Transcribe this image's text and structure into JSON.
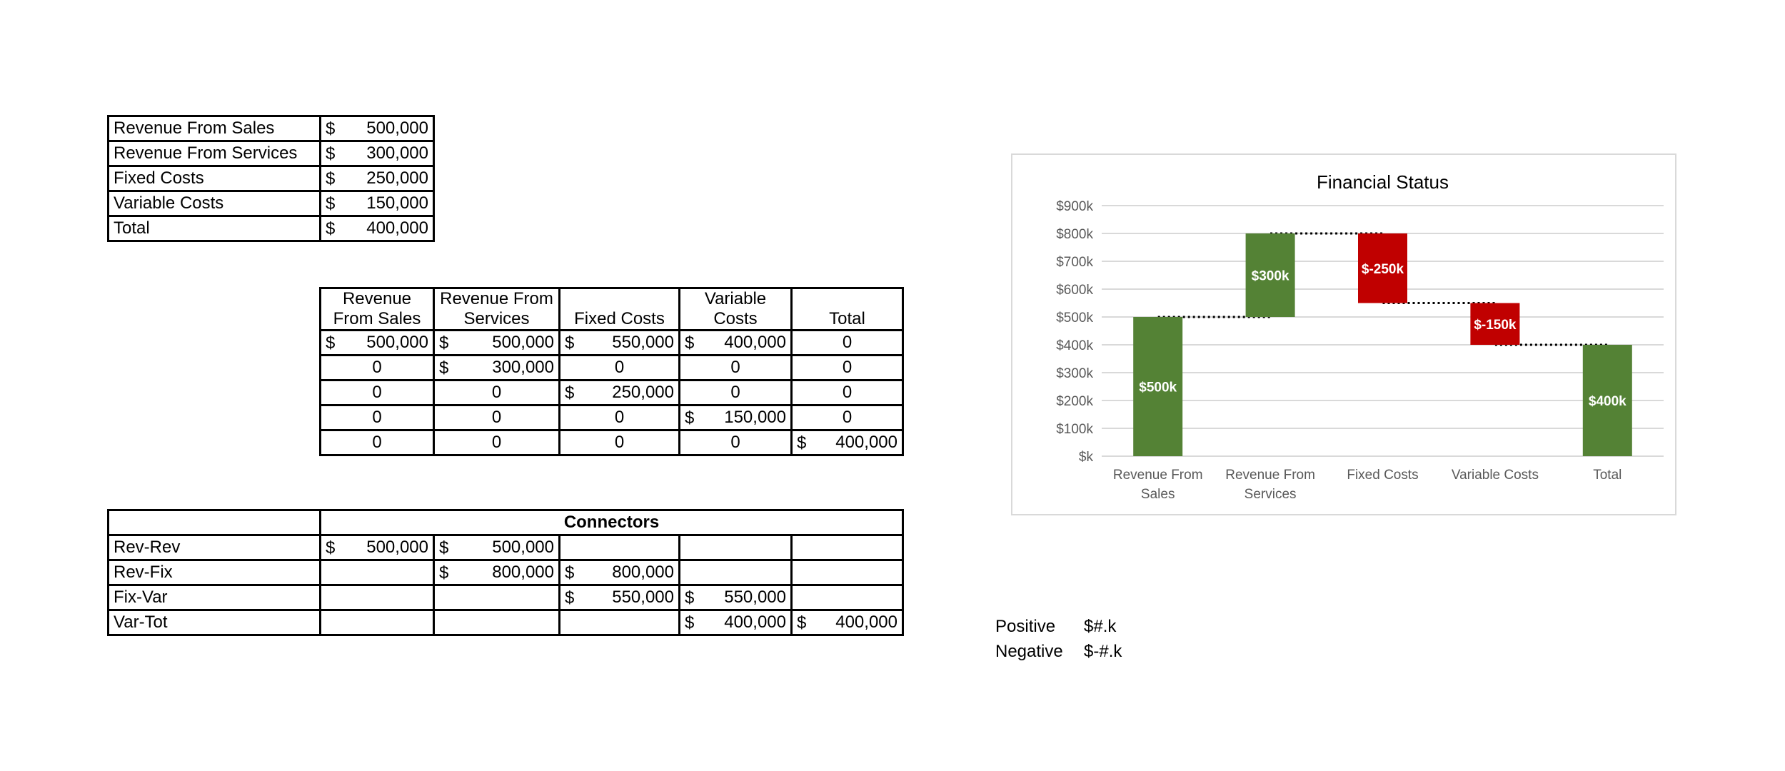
{
  "summary_table": {
    "rows": [
      {
        "label": "Revenue From Sales",
        "symbol": "$",
        "value": "500,000"
      },
      {
        "label": "Revenue From Services",
        "symbol": "$",
        "value": "300,000"
      },
      {
        "label": "Fixed Costs",
        "symbol": "$",
        "value": "250,000"
      },
      {
        "label": "Variable Costs",
        "symbol": "$",
        "value": "150,000"
      },
      {
        "label": "Total",
        "symbol": "$",
        "value": "400,000"
      }
    ]
  },
  "matrix_table": {
    "headers": [
      [
        "Revenue",
        "From Sales"
      ],
      [
        "Revenue From",
        "Services"
      ],
      [
        "Fixed Costs"
      ],
      [
        "Variable",
        "Costs"
      ],
      [
        "Total"
      ]
    ],
    "rows": [
      [
        {
          "s": "$",
          "v": "500,000"
        },
        {
          "s": "$",
          "v": "500,000"
        },
        {
          "s": "$",
          "v": "550,000"
        },
        {
          "s": "$",
          "v": "400,000"
        },
        {
          "v": "0"
        }
      ],
      [
        {
          "v": "0"
        },
        {
          "s": "$",
          "v": "300,000"
        },
        {
          "v": "0"
        },
        {
          "v": "0"
        },
        {
          "v": "0"
        }
      ],
      [
        {
          "v": "0"
        },
        {
          "v": "0"
        },
        {
          "s": "$",
          "v": "250,000"
        },
        {
          "v": "0"
        },
        {
          "v": "0"
        }
      ],
      [
        {
          "v": "0"
        },
        {
          "v": "0"
        },
        {
          "v": "0"
        },
        {
          "s": "$",
          "v": "150,000"
        },
        {
          "v": "0"
        }
      ],
      [
        {
          "v": "0"
        },
        {
          "v": "0"
        },
        {
          "v": "0"
        },
        {
          "v": "0"
        },
        {
          "s": "$",
          "v": "400,000"
        }
      ]
    ]
  },
  "connectors_table": {
    "header": "Connectors",
    "rows": [
      {
        "label": "Rev-Rev",
        "cells": [
          {
            "s": "$",
            "v": "500,000"
          },
          {
            "s": "$",
            "v": "500,000"
          },
          null,
          null,
          null
        ]
      },
      {
        "label": "Rev-Fix",
        "cells": [
          null,
          {
            "s": "$",
            "v": "800,000"
          },
          {
            "s": "$",
            "v": "800,000"
          },
          null,
          null
        ]
      },
      {
        "label": "Fix-Var",
        "cells": [
          null,
          null,
          {
            "s": "$",
            "v": "550,000"
          },
          {
            "s": "$",
            "v": "550,000"
          },
          null
        ]
      },
      {
        "label": "Var-Tot",
        "cells": [
          null,
          null,
          null,
          {
            "s": "$",
            "v": "400,000"
          },
          {
            "s": "$",
            "v": "400,000"
          }
        ]
      }
    ]
  },
  "format_legend": [
    {
      "label": "Positive",
      "format": "$#.k"
    },
    {
      "label": "Negative",
      "format": "$-#.k"
    }
  ],
  "chart_data": {
    "type": "bar",
    "title": "Financial Status",
    "categories": [
      "Revenue From Sales",
      "Revenue From Services",
      "Fixed Costs",
      "Variable Costs",
      "Total"
    ],
    "category_lines": [
      [
        "Revenue From",
        "Sales"
      ],
      [
        "Revenue From",
        "Services"
      ],
      [
        "Fixed Costs"
      ],
      [
        "Variable Costs"
      ],
      [
        "Total"
      ]
    ],
    "bars": [
      {
        "base": 0,
        "top": 500000,
        "label": "$500k",
        "color": "#548235"
      },
      {
        "base": 500000,
        "top": 800000,
        "label": "$300k",
        "color": "#548235"
      },
      {
        "base": 550000,
        "top": 800000,
        "label": "$-250k",
        "color": "#c00000"
      },
      {
        "base": 400000,
        "top": 550000,
        "label": "$-150k",
        "color": "#c00000"
      },
      {
        "base": 0,
        "top": 400000,
        "label": "$400k",
        "color": "#548235"
      }
    ],
    "connectors": [
      {
        "from": 0,
        "to": 1,
        "value": 500000
      },
      {
        "from": 1,
        "to": 2,
        "value": 800000
      },
      {
        "from": 2,
        "to": 3,
        "value": 550000
      },
      {
        "from": 3,
        "to": 4,
        "value": 400000
      }
    ],
    "ylim": [
      0,
      900000
    ],
    "ytick_step": 100000,
    "yticks": [
      "$k",
      "$100k",
      "$200k",
      "$300k",
      "$400k",
      "$500k",
      "$600k",
      "$700k",
      "$800k",
      "$900k"
    ],
    "grid": true,
    "legend": false,
    "xlabel": "",
    "ylabel": ""
  }
}
